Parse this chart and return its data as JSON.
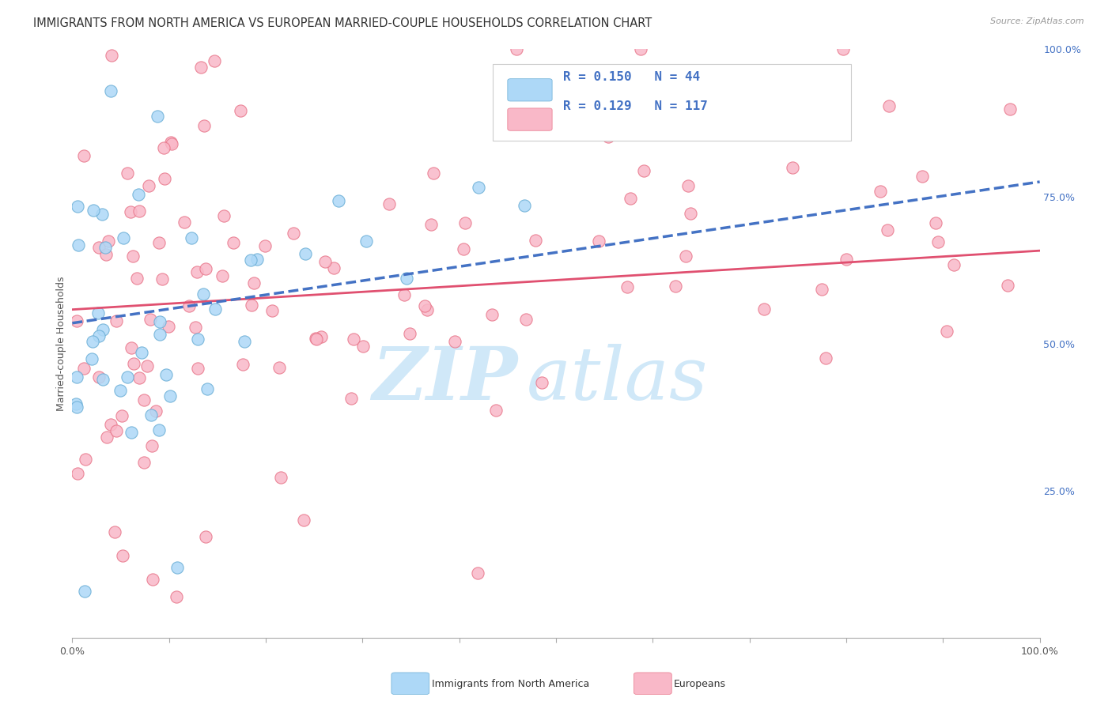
{
  "title": "IMMIGRANTS FROM NORTH AMERICA VS EUROPEAN MARRIED-COUPLE HOUSEHOLDS CORRELATION CHART",
  "source": "Source: ZipAtlas.com",
  "ylabel": "Married-couple Households",
  "xlim": [
    0.0,
    1.0
  ],
  "ylim": [
    0.0,
    1.0
  ],
  "xticks": [
    0.0,
    0.1,
    0.2,
    0.3,
    0.4,
    0.5,
    0.6,
    0.7,
    0.8,
    0.9,
    1.0
  ],
  "yticks": [
    0.0,
    0.25,
    0.5,
    0.75,
    1.0
  ],
  "yticklabels_right": [
    "",
    "25.0%",
    "50.0%",
    "75.0%",
    "100.0%"
  ],
  "blue_fill": "#add8f7",
  "blue_edge": "#6aaed6",
  "pink_fill": "#f9b8c8",
  "pink_edge": "#e8768a",
  "blue_line_color": "#4472c4",
  "pink_line_color": "#e05070",
  "R_blue": 0.15,
  "N_blue": 44,
  "R_pink": 0.129,
  "N_pink": 117,
  "title_fontsize": 10.5,
  "label_fontsize": 9,
  "tick_fontsize": 9,
  "right_tick_color": "#4472c4",
  "legend_text_color": "#4472c4",
  "watermark_color": "#d0e8f8",
  "grid_color": "#e0e0e0"
}
